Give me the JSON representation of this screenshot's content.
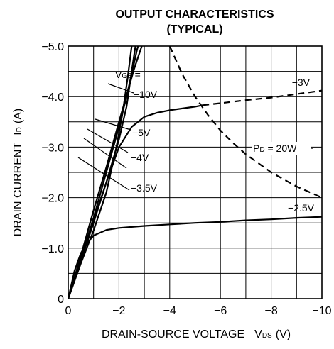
{
  "chart_data": {
    "type": "line",
    "title": "OUTPUT CHARACTERISTICS",
    "subtitle": "(TYPICAL)",
    "xlabel": {
      "main": "DRAIN-SOURCE VOLTAGE",
      "sym": "V",
      "sub": "DS",
      "unit": "(V)"
    },
    "ylabel": {
      "main": "DRAIN CURRENT",
      "sym": "I",
      "sub": "D",
      "unit": "(A)"
    },
    "xlim": [
      0,
      -10
    ],
    "ylim": [
      0,
      -5.0
    ],
    "grid": true,
    "x_ticks": [
      {
        "v": 0,
        "label": "0"
      },
      {
        "v": -2,
        "label": "−2"
      },
      {
        "v": -4,
        "label": "−4"
      },
      {
        "v": -6,
        "label": "−6"
      },
      {
        "v": -8,
        "label": "−8"
      },
      {
        "v": -10,
        "label": "−10"
      }
    ],
    "y_ticks": [
      {
        "v": 0,
        "label": "0"
      },
      {
        "v": -1.0,
        "label": "−1.0"
      },
      {
        "v": -2.0,
        "label": "−2.0"
      },
      {
        "v": -3.0,
        "label": "−3.0"
      },
      {
        "v": -4.0,
        "label": "−4.0"
      },
      {
        "v": -5.0,
        "label": "−5.0"
      }
    ],
    "series": [
      {
        "label": "−10V",
        "style": "solid",
        "points": [
          [
            0,
            0
          ],
          [
            -0.5,
            -0.85
          ],
          [
            -1,
            -1.75
          ],
          [
            -1.5,
            -2.6
          ],
          [
            -2,
            -3.5
          ],
          [
            -2.6,
            -4.55
          ],
          [
            -2.9,
            -5.0
          ]
        ]
      },
      {
        "label": "−5V",
        "style": "solid",
        "points": [
          [
            0,
            0
          ],
          [
            -0.5,
            -0.8
          ],
          [
            -1,
            -1.6
          ],
          [
            -1.5,
            -2.5
          ],
          [
            -2,
            -3.4
          ],
          [
            -2.3,
            -4.0
          ],
          [
            -2.7,
            -4.9
          ],
          [
            -2.75,
            -5.0
          ]
        ]
      },
      {
        "label": "−4V",
        "style": "solid",
        "points": [
          [
            0,
            0
          ],
          [
            -0.5,
            -0.75
          ],
          [
            -1,
            -1.5
          ],
          [
            -1.5,
            -2.3
          ],
          [
            -2,
            -3.15
          ],
          [
            -2.3,
            -3.8
          ],
          [
            -2.5,
            -4.5
          ],
          [
            -2.65,
            -5.0
          ]
        ]
      },
      {
        "label": "−3.5V",
        "style": "solid",
        "points": [
          [
            0,
            0
          ],
          [
            -0.5,
            -0.7
          ],
          [
            -1,
            -1.35
          ],
          [
            -1.5,
            -2.1
          ],
          [
            -1.9,
            -3.0
          ],
          [
            -2.15,
            -3.7
          ],
          [
            -2.35,
            -4.4
          ],
          [
            -2.5,
            -5.0
          ]
        ]
      },
      {
        "label": "−3V",
        "style": "solid",
        "points": [
          [
            0,
            0
          ],
          [
            -0.5,
            -0.8
          ],
          [
            -1,
            -1.55
          ],
          [
            -1.5,
            -2.3
          ],
          [
            -2,
            -3.0
          ],
          [
            -2.5,
            -3.4
          ],
          [
            -3,
            -3.6
          ],
          [
            -3.5,
            -3.68
          ],
          [
            -4,
            -3.73
          ],
          [
            -5,
            -3.8
          ],
          [
            -5.3,
            -3.83
          ]
        ]
      },
      {
        "label": "−3V-dashed",
        "style": "dashed",
        "points": [
          [
            -5.3,
            -3.83
          ],
          [
            -6,
            -3.87
          ],
          [
            -7,
            -3.93
          ],
          [
            -8,
            -3.98
          ],
          [
            -9,
            -4.05
          ],
          [
            -10,
            -4.12
          ]
        ]
      },
      {
        "label": "−2.5V",
        "style": "solid",
        "points": [
          [
            0,
            0
          ],
          [
            -0.25,
            -0.55
          ],
          [
            -0.5,
            -0.9
          ],
          [
            -0.75,
            -1.1
          ],
          [
            -1,
            -1.25
          ],
          [
            -1.5,
            -1.36
          ],
          [
            -2,
            -1.4
          ],
          [
            -3,
            -1.44
          ],
          [
            -4,
            -1.47
          ],
          [
            -5,
            -1.5
          ],
          [
            -6,
            -1.52
          ],
          [
            -7,
            -1.55
          ],
          [
            -8,
            -1.57
          ],
          [
            -9,
            -1.6
          ],
          [
            -10,
            -1.62
          ]
        ]
      },
      {
        "label": "PD = 20W",
        "style": "dashed",
        "points": [
          [
            -4,
            -5.0
          ],
          [
            -4.5,
            -4.44
          ],
          [
            -5,
            -4.0
          ],
          [
            -5.5,
            -3.64
          ],
          [
            -6,
            -3.33
          ],
          [
            -6.5,
            -3.08
          ],
          [
            -7,
            -2.86
          ],
          [
            -8,
            -2.5
          ],
          [
            -9,
            -2.22
          ],
          [
            -10,
            -2.0
          ]
        ]
      }
    ],
    "annotations": [
      {
        "key": "vgs",
        "sym": "V",
        "sub": "GS",
        "text": " ="
      },
      {
        "key": "m10",
        "text": "−10V"
      },
      {
        "key": "m5",
        "text": "−5V"
      },
      {
        "key": "m4",
        "text": "−4V"
      },
      {
        "key": "m35",
        "text": "−3.5V"
      },
      {
        "key": "m3",
        "text": "−3V"
      },
      {
        "key": "m25",
        "text": "−2.5V"
      },
      {
        "key": "pd",
        "sym": "P",
        "sub": "D",
        "text": " = 20W"
      }
    ]
  }
}
